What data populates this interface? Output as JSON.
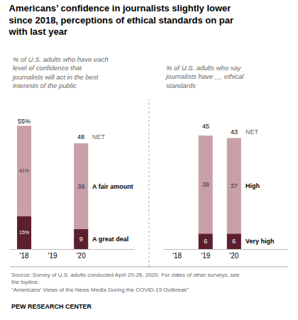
{
  "chart_data": [
    {
      "type": "bar",
      "stacked": true,
      "title": "Americans’ confidence in journalists slightly lower\nsince 2018, perceptions of ethical standards on par\nwith last year",
      "subtitle": "% of U.S. adults who have each\nlevel of confidence that\njournalists will act in the best\ninterests of the public",
      "categories": [
        "'18",
        "'19",
        "'20"
      ],
      "series": [
        {
          "name": "A great deal",
          "color": "#5c1f2e",
          "values": [
            15,
            null,
            9
          ],
          "value_labels": [
            "15%",
            null,
            "9"
          ]
        },
        {
          "name": "A fair amount",
          "color": "#c9a0a8",
          "values": [
            41,
            null,
            39
          ],
          "value_labels": [
            "41%",
            null,
            "39"
          ]
        }
      ],
      "net": {
        "name": "NET",
        "values": [
          55,
          null,
          48
        ],
        "value_labels": [
          "55%",
          null,
          "48"
        ]
      },
      "ylim": [
        0,
        68
      ],
      "grid": false,
      "tick_labels": "x",
      "data_labels": true,
      "annotations": [
        "Source: Survey of U.S. adults conducted April 20-26, 2020. For dates of other surveys, see\nthe topline.\n“Americans’ Views of the News Media During the COVID-19 Outbreak”",
        "PEW RESEARCH CENTER"
      ]
    },
    {
      "type": "bar",
      "stacked": true,
      "subtitle": "% of U.S. adults who say\njournalists have __ ethical\nstandards",
      "categories": [
        "'18",
        "'19",
        "'20"
      ],
      "series": [
        {
          "name": "Very high",
          "color": "#5c1f2e",
          "values": [
            null,
            6,
            6
          ]
        },
        {
          "name": "High",
          "color": "#c9a0a8",
          "values": [
            null,
            38,
            37
          ]
        }
      ],
      "net": {
        "name": "NET",
        "values": [
          null,
          45,
          43
        ]
      },
      "ylim": [
        0,
        58
      ],
      "grid": false,
      "tick_labels": "x",
      "data_labels": true
    }
  ]
}
